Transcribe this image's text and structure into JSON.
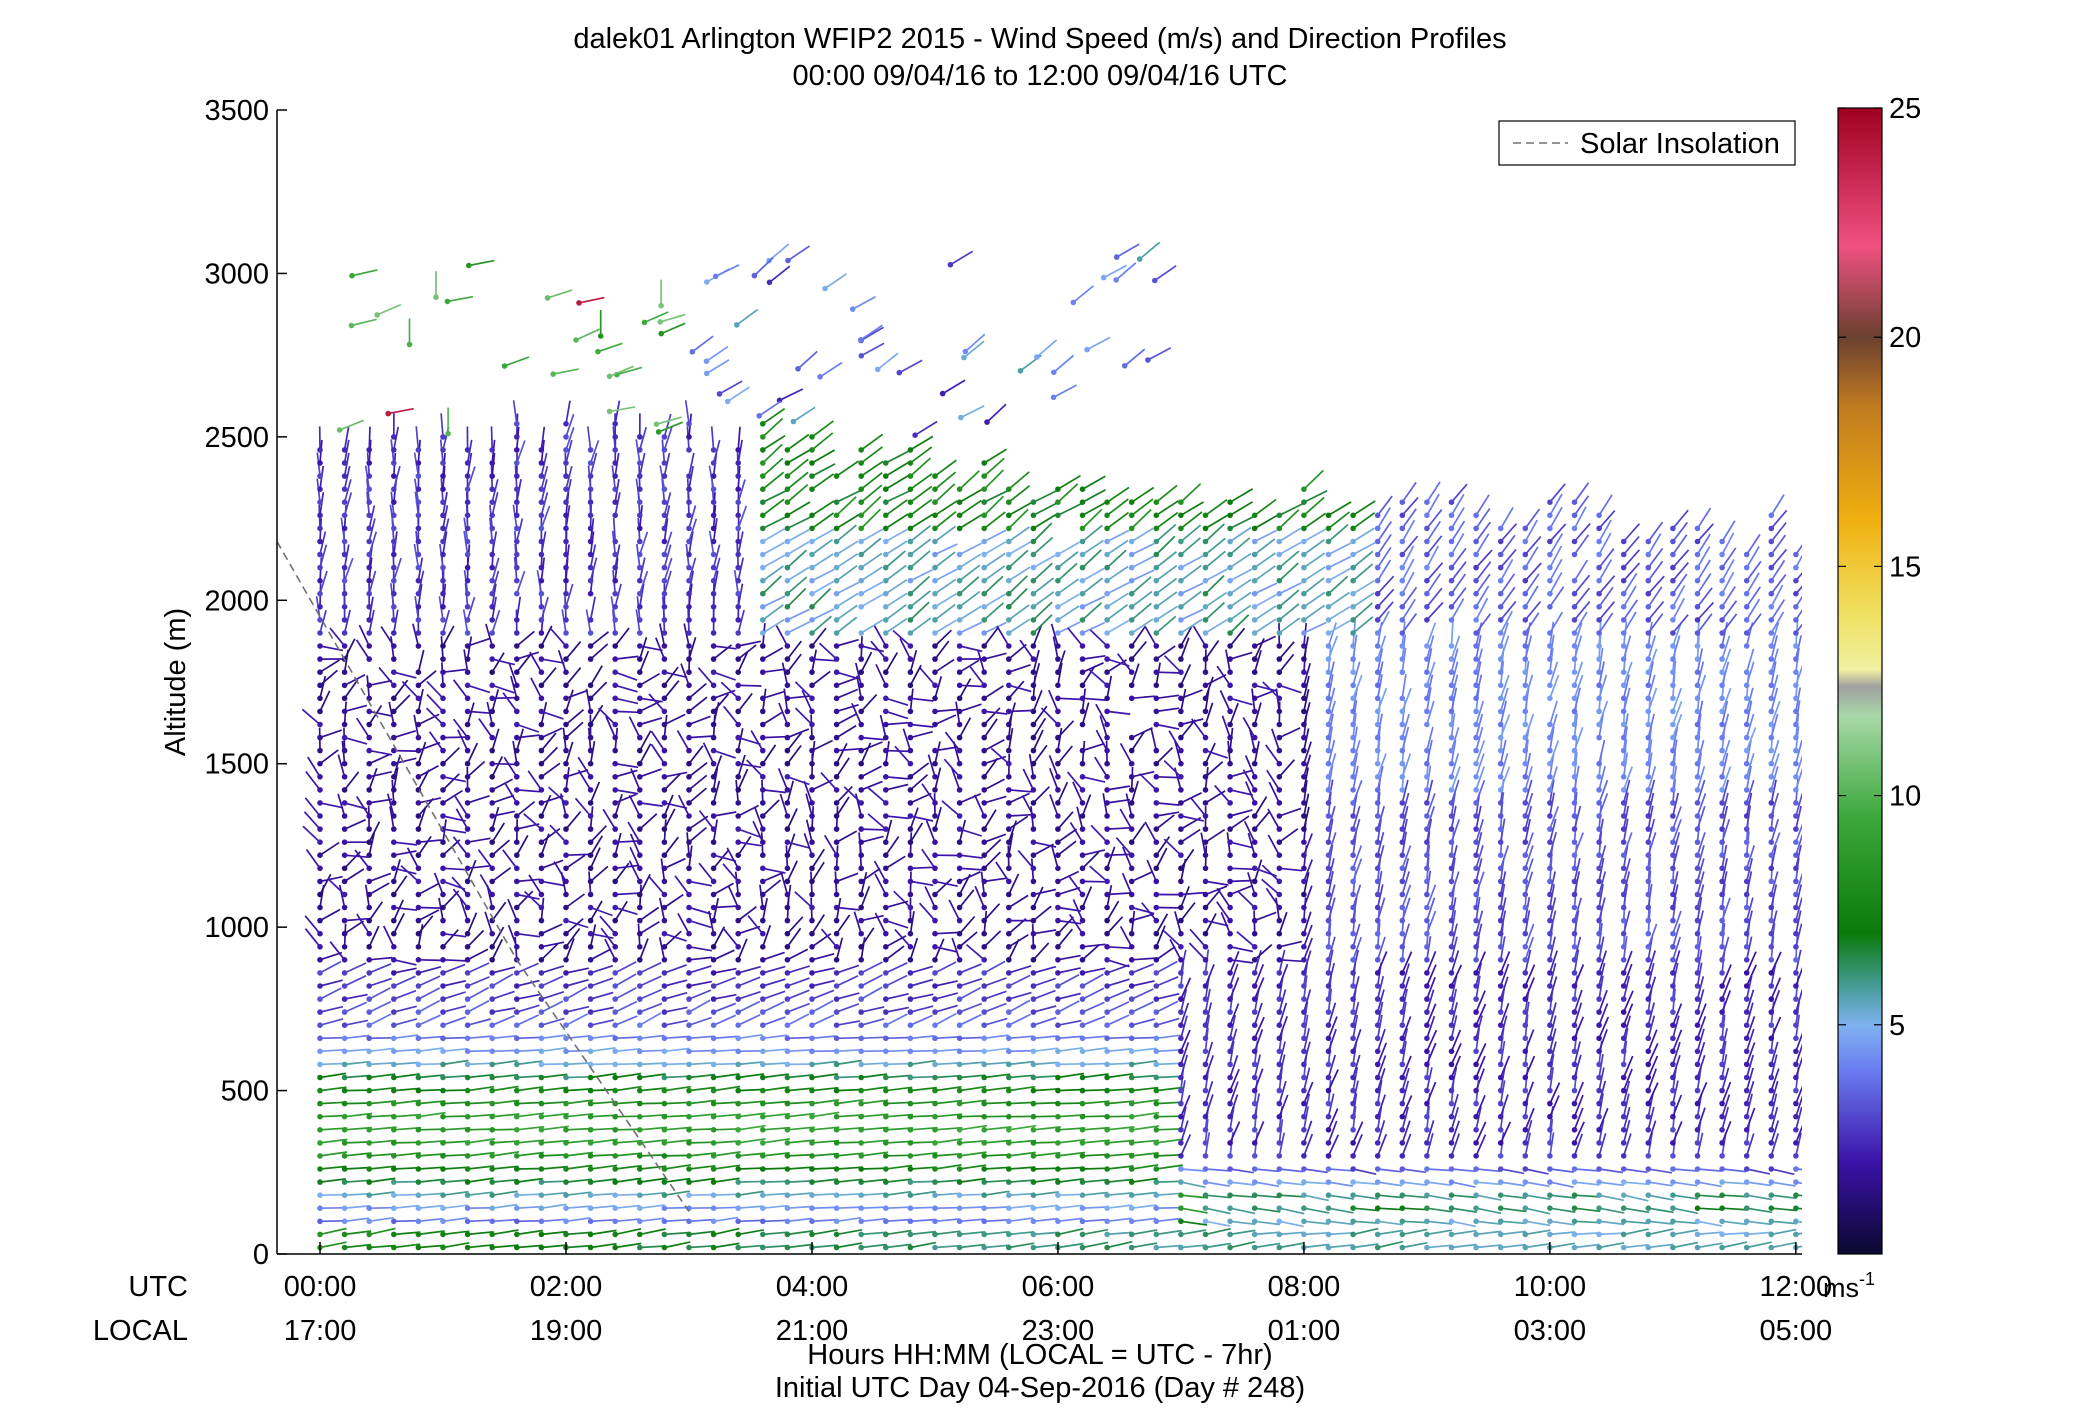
{
  "chart_data": {
    "type": "wind-barb-profile",
    "title": "dalek01 Arlington WFIP2 2015 - Wind Speed (m/s) and Direction Profiles",
    "subtitle": "00:00 09/04/16 to 12:00 09/04/16  UTC",
    "ylabel": "Altitude (m)",
    "xlabel": "Hours HH:MM  (LOCAL = UTC - 7hr)",
    "footnote": "Initial UTC Day 04-Sep-2016 (Day # 248)",
    "row_labels": {
      "utc": "UTC",
      "local": "LOCAL"
    },
    "ylim": [
      0,
      3500
    ],
    "xlim_hours": [
      -0.35,
      12.05
    ],
    "y_ticks": [
      "0",
      "500",
      "1000",
      "1500",
      "2000",
      "2500",
      "3000",
      "3500"
    ],
    "x_ticks_utc": [
      "00:00",
      "02:00",
      "04:00",
      "06:00",
      "08:00",
      "10:00",
      "12:00"
    ],
    "x_ticks_local": [
      "17:00",
      "19:00",
      "21:00",
      "23:00",
      "01:00",
      "03:00",
      "05:00"
    ],
    "legend": {
      "entries": [
        "Solar Insolation"
      ],
      "location": "top-right"
    },
    "solar_insolation_line": {
      "x_hours": [
        -0.35,
        0.0,
        1.6,
        3.0
      ],
      "y": [
        2180,
        1950,
        900,
        130
      ]
    },
    "colorbar": {
      "range": [
        0,
        25
      ],
      "ticks": [
        "5",
        "10",
        "15",
        "20",
        "25"
      ],
      "unit_label": "ms",
      "unit_exponent": "-1",
      "colors": [
        "#0a0830",
        "#3b12a8",
        "#6a7cf0",
        "#7fb2f0",
        "#4a9ea0",
        "#0a7a0a",
        "#3aa83a",
        "#a8d8a8",
        "#f0e060",
        "#f0b010",
        "#c07a20",
        "#6b4030",
        "#f05080",
        "#a00020"
      ]
    },
    "profiles": {
      "time_start_hours": 0.0,
      "time_end_hours": 12.0,
      "num_profiles": 61,
      "height_min_m": 20,
      "height_step_m": 40,
      "note": "wind barbs drawn for each profile time and height gate; speed mapped to colorbar"
    }
  }
}
